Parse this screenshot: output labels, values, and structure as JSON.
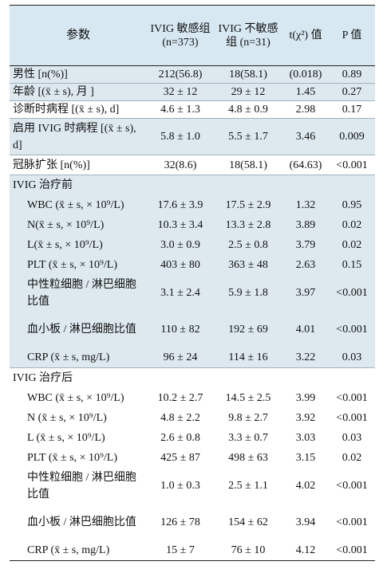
{
  "table": {
    "headers": [
      "参数",
      "IVIG 敏感组 (n=373)",
      "IVIG 不敏感组 (n=31)",
      "t(χ²) 值",
      "P 值"
    ],
    "rows": [
      {
        "label": "男性 [n(%)]",
        "g1": "212(56.8)",
        "g2": "18(58.1)",
        "stat": "(0.018)",
        "p": "0.89"
      },
      {
        "label": "年龄 [(x̄ ± s), 月 ]",
        "g1": "32 ± 12",
        "g2": "29 ± 12",
        "stat": "1.45",
        "p": "0.27"
      },
      {
        "label": "诊断时病程 [(x̄ ± s), d]",
        "g1": "4.6 ± 1.3",
        "g2": "4.8 ± 0.9",
        "stat": "2.98",
        "p": "0.17"
      },
      {
        "label": "启用 IVIG 时病程 [(x̄ ± s), d]",
        "g1": "5.8 ± 1.0",
        "g2": "5.5 ± 1.7",
        "stat": "3.46",
        "p": "0.009"
      },
      {
        "label": "冠脉扩张 [n(%)]",
        "g1": "32(8.6)",
        "g2": "18(58.1)",
        "stat": "(64.63)",
        "p": "<0.001"
      },
      {
        "label": "IVIG 治疗前"
      },
      {
        "label": "WBC (x̄ ± s, × 10⁹/L)",
        "g1": "17.6 ± 3.9",
        "g2": "17.5 ± 2.9",
        "stat": "1.32",
        "p": "0.95"
      },
      {
        "label": "N(x̄ ± s, × 10⁹/L)",
        "g1": "10.3 ± 3.4",
        "g2": "13.3 ± 2.8",
        "stat": "3.89",
        "p": "0.02"
      },
      {
        "label": "L(x̄ ± s, × 10⁹/L)",
        "g1": "3.0 ± 0.9",
        "g2": "2.5 ± 0.8",
        "stat": "3.79",
        "p": "0.02"
      },
      {
        "label": "PLT (x̄ ± s, × 10⁹/L)",
        "g1": "403 ± 80",
        "g2": "363 ± 48",
        "stat": "2.63",
        "p": "0.15"
      },
      {
        "label": "中性粒细胞 / 淋巴细胞比值",
        "g1": "3.1 ± 2.4",
        "g2": "5.9 ± 1.8",
        "stat": "3.97",
        "p": "<0.001"
      },
      {
        "label": "血小板 / 淋巴细胞比值",
        "g1": "110 ± 82",
        "g2": "192 ± 69",
        "stat": "4.01",
        "p": "<0.001"
      },
      {
        "label": "CRP (x̄ ± s, mg/L)",
        "g1": "96 ± 24",
        "g2": "114 ± 16",
        "stat": "3.22",
        "p": "0.03"
      },
      {
        "label": "IVIG 治疗后"
      },
      {
        "label": "WBC (x̄ ± s, × 10⁹/L)",
        "g1": "10.2 ± 2.7",
        "g2": "14.5 ± 2.5",
        "stat": "3.99",
        "p": "<0.001"
      },
      {
        "label": "N (x̄ ± s, × 10⁹/L)",
        "g1": "4.8 ± 2.2",
        "g2": "9.8 ± 2.7",
        "stat": "3.92",
        "p": "<0.001"
      },
      {
        "label": "L (x̄ ± s, × 10⁹/L)",
        "g1": "2.6 ± 0.8",
        "g2": "3.3 ± 0.7",
        "stat": "3.03",
        "p": "0.03"
      },
      {
        "label": "PLT (x̄ ± s, × 10⁹/L)",
        "g1": "425 ± 87",
        "g2": "498 ± 63",
        "stat": "3.15",
        "p": "0.02"
      },
      {
        "label": "中性粒细胞 / 淋巴细胞比值",
        "g1": "1.0 ± 0.3",
        "g2": "2.5 ± 1.1",
        "stat": "4.02",
        "p": "<0.001"
      },
      {
        "label": "血小板 / 淋巴细胞比值",
        "g1": "126 ± 78",
        "g2": "154 ± 62",
        "stat": "3.94",
        "p": "<0.001"
      },
      {
        "label": "CRP (x̄ ± s, mg/L)",
        "g1": "15 ± 7",
        "g2": "76 ± 10",
        "stat": "4.12",
        "p": "<0.001"
      }
    ]
  }
}
